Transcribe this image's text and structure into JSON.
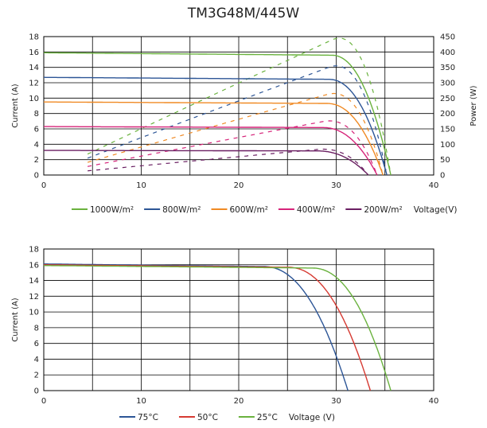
{
  "title": "TM3G48M/445W",
  "chart_data": [
    {
      "type": "line",
      "xlim": [
        0,
        40
      ],
      "ylim": [
        0,
        18
      ],
      "y2lim": [
        0,
        450
      ],
      "xticks": [
        0,
        10,
        20,
        30,
        40
      ],
      "yticks": [
        0,
        2,
        4,
        6,
        8,
        10,
        12,
        14,
        16,
        18
      ],
      "y2ticks": [
        0,
        50,
        100,
        150,
        200,
        250,
        300,
        350,
        400,
        450
      ],
      "grid": true,
      "ylabel": "Current (A)",
      "y2label": "Power (W)",
      "xlabel": "Voltage(V)",
      "legend_position": "bottom",
      "series": [
        {
          "name": "1000W/m²",
          "color": "#6ab23e",
          "isc": 15.9,
          "voc": 35.6,
          "knee": 29.5,
          "pmax": 445
        },
        {
          "name": "800W/m²",
          "color": "#2c5596",
          "isc": 12.7,
          "voc": 35.2,
          "knee": 29.2,
          "pmax": 355
        },
        {
          "name": "600W/m²",
          "color": "#f08a24",
          "isc": 9.5,
          "voc": 34.8,
          "knee": 29.0,
          "pmax": 265
        },
        {
          "name": "400W/m²",
          "color": "#d6247a",
          "isc": 6.3,
          "voc": 34.2,
          "knee": 28.6,
          "pmax": 176
        },
        {
          "name": "200W/m²",
          "color": "#6a1f62",
          "isc": 3.2,
          "voc": 33.3,
          "knee": 28.0,
          "pmax": 84
        }
      ]
    },
    {
      "type": "line",
      "xlim": [
        0,
        40
      ],
      "ylim": [
        0,
        18
      ],
      "xticks": [
        0,
        10,
        20,
        30,
        40
      ],
      "yticks": [
        0,
        2,
        4,
        6,
        8,
        10,
        12,
        14,
        16,
        18
      ],
      "grid": true,
      "ylabel": "Current (A)",
      "xlabel": "Voltage (V)",
      "legend_position": "bottom",
      "series": [
        {
          "name": "75°C",
          "color": "#2c5596",
          "isc": 16.1,
          "voc": 31.2,
          "knee": 22.5
        },
        {
          "name": "50°C",
          "color": "#d63a32",
          "isc": 16.0,
          "voc": 33.5,
          "knee": 25.0
        },
        {
          "name": "25°C",
          "color": "#6ab23e",
          "isc": 15.9,
          "voc": 35.6,
          "knee": 27.5
        }
      ]
    }
  ]
}
